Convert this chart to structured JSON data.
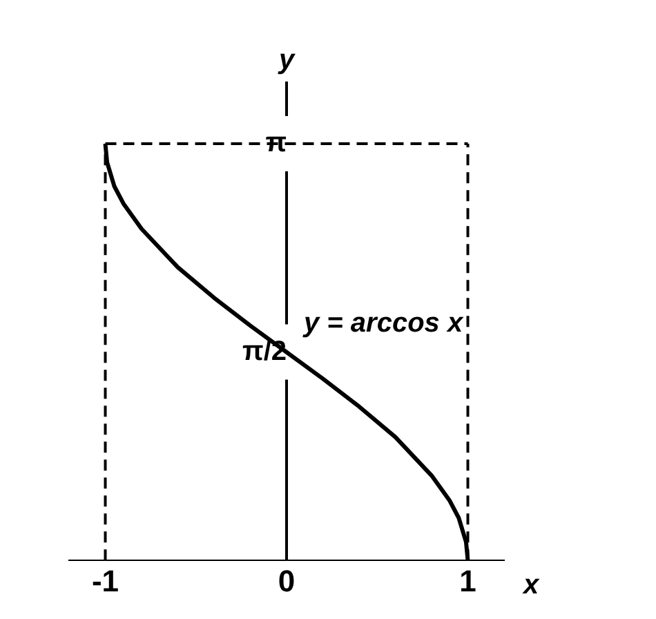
{
  "chart_data": {
    "type": "line",
    "xlabel": "x",
    "ylabel": "y",
    "x": [
      -1,
      -0.99,
      -0.95,
      -0.9,
      -0.8,
      -0.6,
      -0.4,
      -0.2,
      0,
      0.2,
      0.4,
      0.6,
      0.8,
      0.9,
      0.95,
      0.99,
      1
    ],
    "series": [
      {
        "name": "y = arccos x",
        "color": "#000000",
        "values": [
          3.14,
          3.0,
          2.82,
          2.69,
          2.5,
          2.21,
          1.98,
          1.77,
          1.57,
          1.37,
          1.16,
          0.93,
          0.64,
          0.45,
          0.32,
          0.14,
          0
        ]
      }
    ],
    "xlim": [
      -1.2,
      1.2
    ],
    "xticks": [
      -1,
      0,
      1
    ],
    "ylim": [
      0,
      3.6
    ],
    "yticks": [
      {
        "value": 1.5708,
        "label": "π/2"
      },
      {
        "value": 3.1416,
        "label": "π"
      }
    ],
    "ref_lines": [
      {
        "axis": "y",
        "value": 3.1416,
        "line_style": "dashed"
      },
      {
        "axis": "x",
        "value": -1,
        "line_style": "dashed"
      },
      {
        "axis": "x",
        "value": 1,
        "line_style": "dashed"
      }
    ],
    "grid": false,
    "legend": false,
    "marker": "none",
    "line_style": "solid"
  }
}
